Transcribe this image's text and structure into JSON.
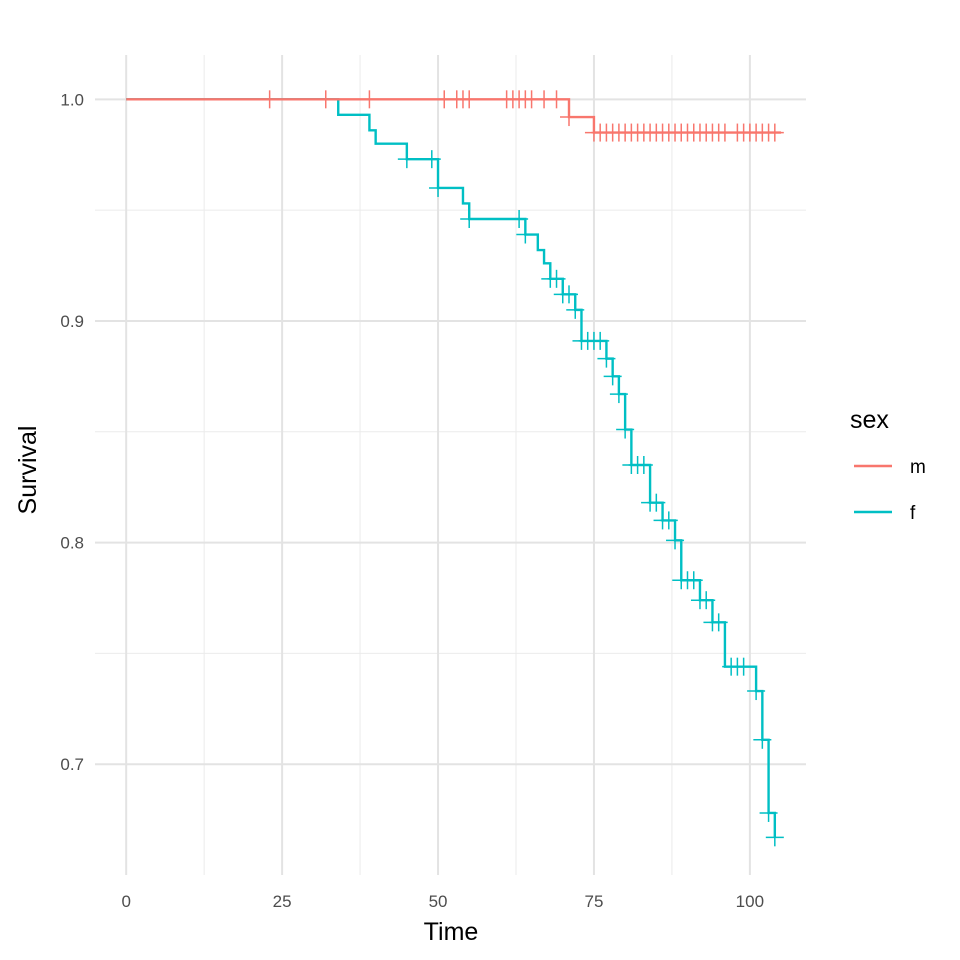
{
  "chart_data": {
    "type": "line",
    "subtype": "kaplan-meier step",
    "xlabel": "Time",
    "ylabel": "Survival",
    "xlim": [
      -5,
      109
    ],
    "ylim": [
      0.65,
      1.02
    ],
    "x_ticks": [
      0,
      25,
      50,
      75,
      100
    ],
    "x_tick_labels": [
      "0",
      "25",
      "50",
      "75",
      "100"
    ],
    "y_ticks": [
      0.7,
      0.8,
      0.9,
      1.0
    ],
    "y_tick_labels": [
      "0.7",
      "0.8",
      "0.9",
      "1.0"
    ],
    "grid": true,
    "legend_position": "right",
    "legend_title": "sex",
    "series": [
      {
        "name": "m",
        "color": "#F8766D",
        "steps": [
          [
            0,
            1.0
          ],
          [
            71,
            0.992
          ],
          [
            75,
            0.985
          ],
          [
            105,
            0.985
          ]
        ],
        "censored": [
          23,
          32,
          39,
          51,
          53,
          54,
          55,
          61,
          62,
          63,
          64,
          65,
          67,
          69,
          71,
          75,
          76,
          77,
          78,
          79,
          80,
          81,
          82,
          83,
          84,
          85,
          86,
          87,
          88,
          89,
          90,
          91,
          92,
          93,
          94,
          95,
          96,
          98,
          99,
          100,
          101,
          102,
          103,
          104
        ]
      },
      {
        "name": "f",
        "color": "#00BFC4",
        "steps": [
          [
            0,
            1.0
          ],
          [
            34,
            0.993
          ],
          [
            39,
            0.986
          ],
          [
            40,
            0.98
          ],
          [
            45,
            0.973
          ],
          [
            50,
            0.96
          ],
          [
            54,
            0.953
          ],
          [
            55,
            0.946
          ],
          [
            64,
            0.939
          ],
          [
            66,
            0.932
          ],
          [
            67,
            0.926
          ],
          [
            68,
            0.919
          ],
          [
            70,
            0.912
          ],
          [
            72,
            0.905
          ],
          [
            73,
            0.891
          ],
          [
            77,
            0.883
          ],
          [
            78,
            0.875
          ],
          [
            79,
            0.867
          ],
          [
            80,
            0.851
          ],
          [
            81,
            0.835
          ],
          [
            84,
            0.818
          ],
          [
            86,
            0.81
          ],
          [
            88,
            0.801
          ],
          [
            89,
            0.783
          ],
          [
            92,
            0.774
          ],
          [
            94,
            0.764
          ],
          [
            96,
            0.744
          ],
          [
            101,
            0.733
          ],
          [
            102,
            0.711
          ],
          [
            103,
            0.678
          ],
          [
            104,
            0.667
          ]
        ],
        "censored": [
          45,
          49,
          50,
          55,
          63,
          64,
          68,
          69,
          70,
          71,
          72,
          73,
          74,
          75,
          76,
          77,
          78,
          79,
          80,
          81,
          82,
          83,
          84,
          85,
          86,
          87,
          88,
          89,
          90,
          91,
          92,
          93,
          94,
          95,
          97,
          98,
          99,
          101,
          102,
          103,
          104
        ]
      }
    ]
  }
}
